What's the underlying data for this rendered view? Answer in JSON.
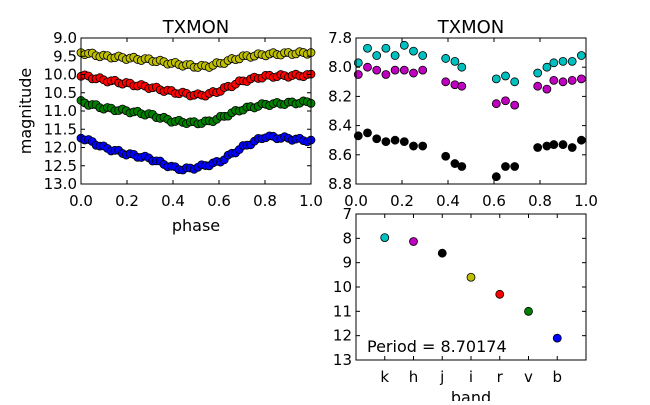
{
  "chart_data": [
    {
      "type": "scatter",
      "title": "TXMON",
      "xlabel": "phase",
      "ylabel": "magnitude",
      "xlim": [
        0.0,
        1.0
      ],
      "ylim": [
        13.0,
        9.0
      ],
      "y_inverted": true,
      "xticks": [
        "0.0",
        "0.2",
        "0.4",
        "0.6",
        "0.8",
        "1.0"
      ],
      "yticks": [
        "9.0",
        "9.5",
        "10.0",
        "10.5",
        "11.0",
        "11.5",
        "12.0",
        "12.5",
        "13.0"
      ],
      "series": [
        {
          "color": "#bfbf00",
          "curve": [
            [
              0.0,
              9.4
            ],
            [
              0.1,
              9.5
            ],
            [
              0.2,
              9.55
            ],
            [
              0.3,
              9.6
            ],
            [
              0.4,
              9.7
            ],
            [
              0.5,
              9.78
            ],
            [
              0.55,
              9.78
            ],
            [
              0.6,
              9.7
            ],
            [
              0.7,
              9.52
            ],
            [
              0.8,
              9.45
            ],
            [
              1.0,
              9.4
            ]
          ]
        },
        {
          "color": "#ff0000",
          "curve": [
            [
              0.0,
              10.02
            ],
            [
              0.1,
              10.15
            ],
            [
              0.2,
              10.25
            ],
            [
              0.3,
              10.35
            ],
            [
              0.4,
              10.48
            ],
            [
              0.5,
              10.57
            ],
            [
              0.55,
              10.55
            ],
            [
              0.6,
              10.45
            ],
            [
              0.7,
              10.18
            ],
            [
              0.8,
              10.05
            ],
            [
              1.0,
              10.02
            ]
          ]
        },
        {
          "color": "#008000",
          "curve": [
            [
              0.0,
              10.75
            ],
            [
              0.1,
              10.92
            ],
            [
              0.2,
              11.0
            ],
            [
              0.3,
              11.1
            ],
            [
              0.4,
              11.28
            ],
            [
              0.5,
              11.33
            ],
            [
              0.55,
              11.3
            ],
            [
              0.6,
              11.2
            ],
            [
              0.7,
              10.95
            ],
            [
              0.8,
              10.82
            ],
            [
              1.0,
              10.75
            ]
          ]
        },
        {
          "color": "#0000ff",
          "curve": [
            [
              0.0,
              11.72
            ],
            [
              0.1,
              12.0
            ],
            [
              0.2,
              12.18
            ],
            [
              0.3,
              12.3
            ],
            [
              0.4,
              12.55
            ],
            [
              0.45,
              12.6
            ],
            [
              0.5,
              12.55
            ],
            [
              0.6,
              12.4
            ],
            [
              0.7,
              12.0
            ],
            [
              0.8,
              11.7
            ],
            [
              0.9,
              11.75
            ],
            [
              1.0,
              11.82
            ]
          ]
        }
      ]
    },
    {
      "type": "scatter",
      "title": "TXMON",
      "xlim": [
        0.0,
        1.0
      ],
      "ylim": [
        8.8,
        7.8
      ],
      "y_inverted": true,
      "xticks": [
        "0.0",
        "0.2",
        "0.4",
        "0.6",
        "0.8",
        "1.0"
      ],
      "yticks": [
        "7.8",
        "8.0",
        "8.2",
        "8.4",
        "8.6",
        "8.8"
      ],
      "series": [
        {
          "color": "#00bfbf",
          "points": [
            [
              0.01,
              7.97
            ],
            [
              0.05,
              7.87
            ],
            [
              0.09,
              7.92
            ],
            [
              0.13,
              7.87
            ],
            [
              0.17,
              7.92
            ],
            [
              0.21,
              7.85
            ],
            [
              0.25,
              7.89
            ],
            [
              0.29,
              7.92
            ],
            [
              0.39,
              7.94
            ],
            [
              0.43,
              7.96
            ],
            [
              0.46,
              8.0
            ],
            [
              0.61,
              8.08
            ],
            [
              0.65,
              8.06
            ],
            [
              0.69,
              8.1
            ],
            [
              0.79,
              8.04
            ],
            [
              0.83,
              8.0
            ],
            [
              0.86,
              7.97
            ],
            [
              0.9,
              7.96
            ],
            [
              0.94,
              7.96
            ],
            [
              0.98,
              7.92
            ]
          ]
        },
        {
          "color": "#bf00bf",
          "points": [
            [
              0.01,
              8.05
            ],
            [
              0.05,
              8.0
            ],
            [
              0.09,
              8.02
            ],
            [
              0.13,
              8.05
            ],
            [
              0.17,
              8.02
            ],
            [
              0.21,
              8.02
            ],
            [
              0.25,
              8.04
            ],
            [
              0.29,
              8.02
            ],
            [
              0.39,
              8.1
            ],
            [
              0.43,
              8.12
            ],
            [
              0.46,
              8.13
            ],
            [
              0.61,
              8.25
            ],
            [
              0.65,
              8.23
            ],
            [
              0.69,
              8.26
            ],
            [
              0.79,
              8.13
            ],
            [
              0.83,
              8.15
            ],
            [
              0.86,
              8.09
            ],
            [
              0.9,
              8.1
            ],
            [
              0.94,
              8.09
            ],
            [
              0.98,
              8.08
            ]
          ]
        },
        {
          "color": "#000000",
          "points": [
            [
              0.01,
              8.47
            ],
            [
              0.05,
              8.45
            ],
            [
              0.09,
              8.49
            ],
            [
              0.13,
              8.51
            ],
            [
              0.17,
              8.5
            ],
            [
              0.21,
              8.51
            ],
            [
              0.25,
              8.54
            ],
            [
              0.29,
              8.54
            ],
            [
              0.39,
              8.61
            ],
            [
              0.43,
              8.66
            ],
            [
              0.46,
              8.68
            ],
            [
              0.61,
              8.75
            ],
            [
              0.65,
              8.68
            ],
            [
              0.69,
              8.68
            ],
            [
              0.79,
              8.55
            ],
            [
              0.83,
              8.54
            ],
            [
              0.86,
              8.53
            ],
            [
              0.9,
              8.53
            ],
            [
              0.94,
              8.55
            ],
            [
              0.98,
              8.5
            ]
          ]
        }
      ]
    },
    {
      "type": "scatter",
      "xlabel": "band",
      "ylim": [
        13,
        7
      ],
      "y_inverted": true,
      "yticks": [
        "7",
        "8",
        "9",
        "10",
        "11",
        "12",
        "13"
      ],
      "categories": [
        "k",
        "h",
        "j",
        "i",
        "r",
        "v",
        "b"
      ],
      "values": [
        7.97,
        8.13,
        8.61,
        9.6,
        10.3,
        11.0,
        12.1
      ],
      "colors": [
        "#00bfbf",
        "#bf00bf",
        "#000000",
        "#bfbf00",
        "#ff0000",
        "#008000",
        "#0000ff"
      ],
      "annotation": "Period = 8.70174"
    }
  ]
}
